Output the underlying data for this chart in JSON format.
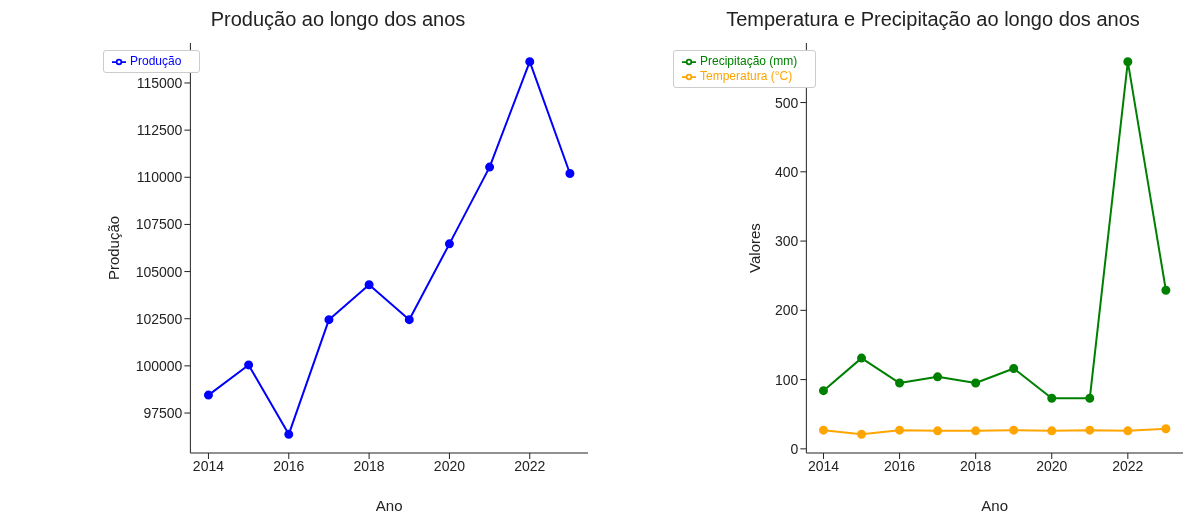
{
  "chart_data": [
    {
      "type": "line",
      "title": "Produção ao longo dos anos",
      "xlabel": "Ano",
      "ylabel": "Produção",
      "x": [
        2014,
        2015,
        2016,
        2017,
        2018,
        2019,
        2020,
        2021,
        2022,
        2023
      ],
      "series": [
        {
          "name": "Produção",
          "color": "#0000ff",
          "values": [
            98450,
            100050,
            96370,
            102450,
            104300,
            102450,
            106470,
            110540,
            116130,
            110200
          ]
        }
      ],
      "xlim": [
        2013.55,
        2023.45
      ],
      "xticks": [
        2014,
        2016,
        2018,
        2020,
        2022
      ],
      "ylim": [
        95380,
        117120
      ],
      "yticks": [
        97500,
        100000,
        102500,
        105000,
        107500,
        110000,
        112500,
        115000
      ],
      "grid": false,
      "legend": "top left",
      "marker": "circle",
      "line_style": "solid"
    },
    {
      "type": "line",
      "title": "Temperatura e Precipitação ao longo dos anos",
      "xlabel": "Ano",
      "ylabel": "Valores",
      "x": [
        2014,
        2015,
        2016,
        2017,
        2018,
        2019,
        2020,
        2021,
        2022,
        2023
      ],
      "series": [
        {
          "name": "Temperatura (°C)",
          "color": "#ffa500",
          "values": [
            27,
            21,
            27,
            26,
            26,
            27,
            26,
            27,
            26,
            29
          ]
        },
        {
          "name": "Precipitação (mm)",
          "color": "#008000",
          "values": [
            84,
            131,
            95,
            104,
            95,
            116,
            73,
            73,
            559,
            229
          ]
        }
      ],
      "xlim": [
        2013.55,
        2023.45
      ],
      "xticks": [
        2014,
        2016,
        2018,
        2020,
        2022
      ],
      "ylim": [
        -6,
        586
      ],
      "yticks": [
        0,
        100,
        200,
        300,
        400,
        500
      ],
      "grid": false,
      "legend": "top left",
      "marker": "circle",
      "line_style": "solid"
    }
  ]
}
